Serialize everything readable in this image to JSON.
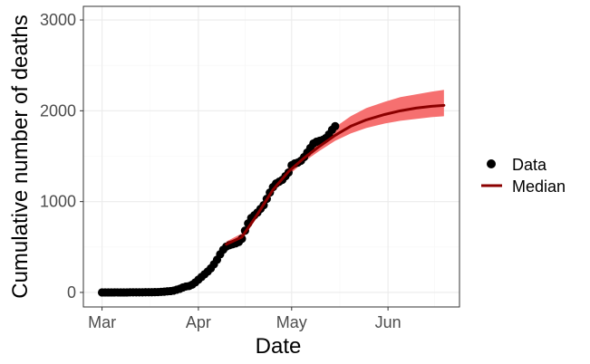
{
  "chart_data": {
    "type": "line",
    "xlabel": "Date",
    "ylabel": "Cumulative number of deaths",
    "x_ticks": [
      {
        "label": "Mar",
        "date": "2020-03-01"
      },
      {
        "label": "Apr",
        "date": "2020-04-01"
      },
      {
        "label": "May",
        "date": "2020-05-01"
      },
      {
        "label": "Jun",
        "date": "2020-06-01"
      }
    ],
    "xlim": [
      "2020-02-24",
      "2020-06-24"
    ],
    "y_ticks": [
      0,
      1000,
      2000,
      3000
    ],
    "ylim": [
      -160,
      3150
    ],
    "grid": true,
    "legend_position": "right",
    "colors": {
      "data_points": "#000000",
      "median_line": "#8b0000",
      "ribbon": "#f56868",
      "grid_major": "#ebebeb",
      "grid_minor": "#f5f5f5",
      "panel_border": "#333333"
    },
    "series": [
      {
        "name": "Data",
        "kind": "points",
        "points": [
          [
            "2020-03-01",
            0
          ],
          [
            "2020-03-02",
            0
          ],
          [
            "2020-03-03",
            0
          ],
          [
            "2020-03-04",
            0
          ],
          [
            "2020-03-05",
            0
          ],
          [
            "2020-03-06",
            0
          ],
          [
            "2020-03-07",
            0
          ],
          [
            "2020-03-08",
            0
          ],
          [
            "2020-03-09",
            0
          ],
          [
            "2020-03-10",
            1
          ],
          [
            "2020-03-11",
            1
          ],
          [
            "2020-03-12",
            1
          ],
          [
            "2020-03-13",
            1
          ],
          [
            "2020-03-14",
            1
          ],
          [
            "2020-03-15",
            2
          ],
          [
            "2020-03-16",
            2
          ],
          [
            "2020-03-17",
            2
          ],
          [
            "2020-03-18",
            3
          ],
          [
            "2020-03-19",
            4
          ],
          [
            "2020-03-20",
            6
          ],
          [
            "2020-03-21",
            8
          ],
          [
            "2020-03-22",
            12
          ],
          [
            "2020-03-23",
            15
          ],
          [
            "2020-03-24",
            20
          ],
          [
            "2020-03-25",
            30
          ],
          [
            "2020-03-26",
            40
          ],
          [
            "2020-03-27",
            55
          ],
          [
            "2020-03-28",
            65
          ],
          [
            "2020-03-29",
            70
          ],
          [
            "2020-03-30",
            85
          ],
          [
            "2020-03-31",
            110
          ],
          [
            "2020-04-01",
            140
          ],
          [
            "2020-04-02",
            170
          ],
          [
            "2020-04-03",
            200
          ],
          [
            "2020-04-04",
            230
          ],
          [
            "2020-04-05",
            265
          ],
          [
            "2020-04-06",
            310
          ],
          [
            "2020-04-07",
            360
          ],
          [
            "2020-04-08",
            420
          ],
          [
            "2020-04-09",
            470
          ],
          [
            "2020-04-10",
            505
          ],
          [
            "2020-04-11",
            520
          ],
          [
            "2020-04-12",
            530
          ],
          [
            "2020-04-13",
            540
          ],
          [
            "2020-04-14",
            555
          ],
          [
            "2020-04-15",
            590
          ],
          [
            "2020-04-16",
            680
          ],
          [
            "2020-04-17",
            760
          ],
          [
            "2020-04-18",
            820
          ],
          [
            "2020-04-19",
            850
          ],
          [
            "2020-04-20",
            880
          ],
          [
            "2020-04-21",
            920
          ],
          [
            "2020-04-22",
            960
          ],
          [
            "2020-04-23",
            1030
          ],
          [
            "2020-04-24",
            1100
          ],
          [
            "2020-04-25",
            1160
          ],
          [
            "2020-04-26",
            1200
          ],
          [
            "2020-04-27",
            1220
          ],
          [
            "2020-04-28",
            1240
          ],
          [
            "2020-04-29",
            1280
          ],
          [
            "2020-04-30",
            1320
          ],
          [
            "2020-05-01",
            1400
          ],
          [
            "2020-05-02",
            1420
          ],
          [
            "2020-05-03",
            1430
          ],
          [
            "2020-05-04",
            1450
          ],
          [
            "2020-05-05",
            1490
          ],
          [
            "2020-05-06",
            1540
          ],
          [
            "2020-05-07",
            1590
          ],
          [
            "2020-05-08",
            1640
          ],
          [
            "2020-05-09",
            1660
          ],
          [
            "2020-05-10",
            1670
          ],
          [
            "2020-05-11",
            1680
          ],
          [
            "2020-05-12",
            1700
          ],
          [
            "2020-05-13",
            1740
          ],
          [
            "2020-05-14",
            1790
          ],
          [
            "2020-05-15",
            1830
          ]
        ]
      },
      {
        "name": "Median",
        "kind": "line",
        "points": [
          [
            "2020-04-10",
            530
          ],
          [
            "2020-04-15",
            610
          ],
          [
            "2020-04-20",
            860
          ],
          [
            "2020-04-25",
            1130
          ],
          [
            "2020-04-30",
            1330
          ],
          [
            "2020-05-05",
            1480
          ],
          [
            "2020-05-10",
            1610
          ],
          [
            "2020-05-15",
            1730
          ],
          [
            "2020-05-20",
            1830
          ],
          [
            "2020-05-25",
            1900
          ],
          [
            "2020-05-31",
            1960
          ],
          [
            "2020-06-05",
            2000
          ],
          [
            "2020-06-10",
            2030
          ],
          [
            "2020-06-15",
            2050
          ],
          [
            "2020-06-19",
            2060
          ]
        ]
      },
      {
        "name": "ribbon",
        "kind": "band",
        "points": [
          [
            "2020-04-10",
            500,
            560
          ],
          [
            "2020-04-15",
            580,
            650
          ],
          [
            "2020-04-20",
            830,
            900
          ],
          [
            "2020-04-25",
            1100,
            1170
          ],
          [
            "2020-04-30",
            1290,
            1380
          ],
          [
            "2020-05-05",
            1440,
            1540
          ],
          [
            "2020-05-10",
            1560,
            1680
          ],
          [
            "2020-05-15",
            1670,
            1820
          ],
          [
            "2020-05-20",
            1750,
            1940
          ],
          [
            "2020-05-25",
            1810,
            2030
          ],
          [
            "2020-05-31",
            1860,
            2100
          ],
          [
            "2020-06-05",
            1890,
            2150
          ],
          [
            "2020-06-10",
            1910,
            2180
          ],
          [
            "2020-06-15",
            1930,
            2210
          ],
          [
            "2020-06-19",
            1940,
            2230
          ]
        ]
      }
    ]
  }
}
